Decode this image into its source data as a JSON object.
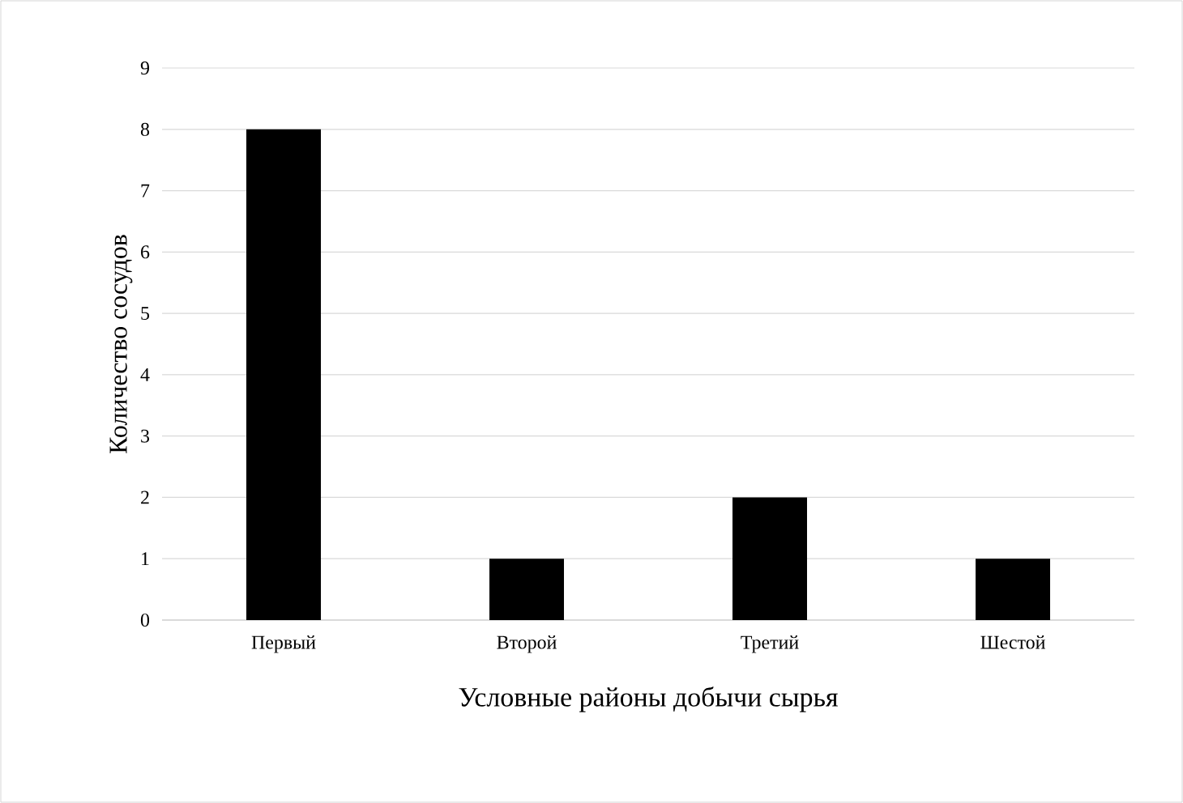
{
  "chart_data": {
    "type": "bar",
    "xlabel": "Условные районы добычи сырья",
    "ylabel": "Количество сосудов",
    "categories": [
      "Первый",
      "Второй",
      "Третий",
      "Шестой"
    ],
    "values": [
      8,
      1,
      2,
      1
    ],
    "color": "#000000",
    "ylim": [
      0,
      9
    ],
    "yticks": [
      0,
      1,
      2,
      3,
      4,
      5,
      6,
      7,
      8,
      9
    ],
    "grid": "y"
  }
}
